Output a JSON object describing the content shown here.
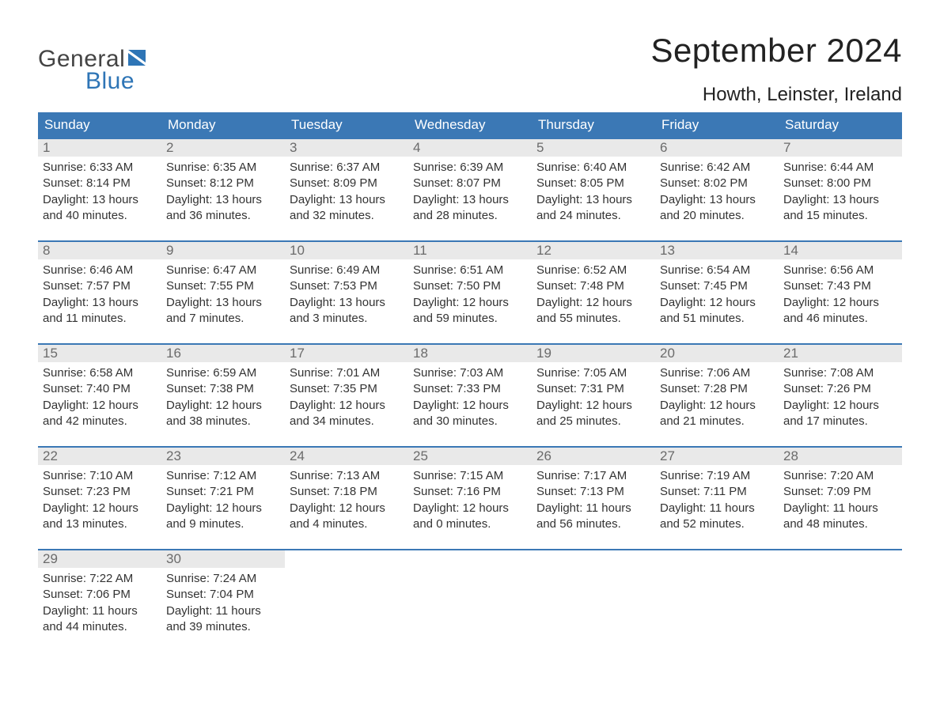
{
  "brand": {
    "text_general": "General",
    "text_blue": "Blue",
    "flag_color": "#2e75b6",
    "text_color_general": "#444444",
    "text_color_blue": "#2e75b6"
  },
  "title": {
    "month": "September 2024",
    "location": "Howth, Leinster, Ireland",
    "month_fontsize": 42,
    "location_fontsize": 24
  },
  "colors": {
    "header_bg": "#3b78b5",
    "header_text": "#ffffff",
    "daynum_bg": "#e9e9e9",
    "daynum_text": "#6b6b6b",
    "body_text": "#333333",
    "week_border": "#3b78b5",
    "page_bg": "#ffffff"
  },
  "day_headers": [
    "Sunday",
    "Monday",
    "Tuesday",
    "Wednesday",
    "Thursday",
    "Friday",
    "Saturday"
  ],
  "weeks": [
    [
      {
        "num": "1",
        "sunrise": "Sunrise: 6:33 AM",
        "sunset": "Sunset: 8:14 PM",
        "day1": "Daylight: 13 hours",
        "day2": "and 40 minutes."
      },
      {
        "num": "2",
        "sunrise": "Sunrise: 6:35 AM",
        "sunset": "Sunset: 8:12 PM",
        "day1": "Daylight: 13 hours",
        "day2": "and 36 minutes."
      },
      {
        "num": "3",
        "sunrise": "Sunrise: 6:37 AM",
        "sunset": "Sunset: 8:09 PM",
        "day1": "Daylight: 13 hours",
        "day2": "and 32 minutes."
      },
      {
        "num": "4",
        "sunrise": "Sunrise: 6:39 AM",
        "sunset": "Sunset: 8:07 PM",
        "day1": "Daylight: 13 hours",
        "day2": "and 28 minutes."
      },
      {
        "num": "5",
        "sunrise": "Sunrise: 6:40 AM",
        "sunset": "Sunset: 8:05 PM",
        "day1": "Daylight: 13 hours",
        "day2": "and 24 minutes."
      },
      {
        "num": "6",
        "sunrise": "Sunrise: 6:42 AM",
        "sunset": "Sunset: 8:02 PM",
        "day1": "Daylight: 13 hours",
        "day2": "and 20 minutes."
      },
      {
        "num": "7",
        "sunrise": "Sunrise: 6:44 AM",
        "sunset": "Sunset: 8:00 PM",
        "day1": "Daylight: 13 hours",
        "day2": "and 15 minutes."
      }
    ],
    [
      {
        "num": "8",
        "sunrise": "Sunrise: 6:46 AM",
        "sunset": "Sunset: 7:57 PM",
        "day1": "Daylight: 13 hours",
        "day2": "and 11 minutes."
      },
      {
        "num": "9",
        "sunrise": "Sunrise: 6:47 AM",
        "sunset": "Sunset: 7:55 PM",
        "day1": "Daylight: 13 hours",
        "day2": "and 7 minutes."
      },
      {
        "num": "10",
        "sunrise": "Sunrise: 6:49 AM",
        "sunset": "Sunset: 7:53 PM",
        "day1": "Daylight: 13 hours",
        "day2": "and 3 minutes."
      },
      {
        "num": "11",
        "sunrise": "Sunrise: 6:51 AM",
        "sunset": "Sunset: 7:50 PM",
        "day1": "Daylight: 12 hours",
        "day2": "and 59 minutes."
      },
      {
        "num": "12",
        "sunrise": "Sunrise: 6:52 AM",
        "sunset": "Sunset: 7:48 PM",
        "day1": "Daylight: 12 hours",
        "day2": "and 55 minutes."
      },
      {
        "num": "13",
        "sunrise": "Sunrise: 6:54 AM",
        "sunset": "Sunset: 7:45 PM",
        "day1": "Daylight: 12 hours",
        "day2": "and 51 minutes."
      },
      {
        "num": "14",
        "sunrise": "Sunrise: 6:56 AM",
        "sunset": "Sunset: 7:43 PM",
        "day1": "Daylight: 12 hours",
        "day2": "and 46 minutes."
      }
    ],
    [
      {
        "num": "15",
        "sunrise": "Sunrise: 6:58 AM",
        "sunset": "Sunset: 7:40 PM",
        "day1": "Daylight: 12 hours",
        "day2": "and 42 minutes."
      },
      {
        "num": "16",
        "sunrise": "Sunrise: 6:59 AM",
        "sunset": "Sunset: 7:38 PM",
        "day1": "Daylight: 12 hours",
        "day2": "and 38 minutes."
      },
      {
        "num": "17",
        "sunrise": "Sunrise: 7:01 AM",
        "sunset": "Sunset: 7:35 PM",
        "day1": "Daylight: 12 hours",
        "day2": "and 34 minutes."
      },
      {
        "num": "18",
        "sunrise": "Sunrise: 7:03 AM",
        "sunset": "Sunset: 7:33 PM",
        "day1": "Daylight: 12 hours",
        "day2": "and 30 minutes."
      },
      {
        "num": "19",
        "sunrise": "Sunrise: 7:05 AM",
        "sunset": "Sunset: 7:31 PM",
        "day1": "Daylight: 12 hours",
        "day2": "and 25 minutes."
      },
      {
        "num": "20",
        "sunrise": "Sunrise: 7:06 AM",
        "sunset": "Sunset: 7:28 PM",
        "day1": "Daylight: 12 hours",
        "day2": "and 21 minutes."
      },
      {
        "num": "21",
        "sunrise": "Sunrise: 7:08 AM",
        "sunset": "Sunset: 7:26 PM",
        "day1": "Daylight: 12 hours",
        "day2": "and 17 minutes."
      }
    ],
    [
      {
        "num": "22",
        "sunrise": "Sunrise: 7:10 AM",
        "sunset": "Sunset: 7:23 PM",
        "day1": "Daylight: 12 hours",
        "day2": "and 13 minutes."
      },
      {
        "num": "23",
        "sunrise": "Sunrise: 7:12 AM",
        "sunset": "Sunset: 7:21 PM",
        "day1": "Daylight: 12 hours",
        "day2": "and 9 minutes."
      },
      {
        "num": "24",
        "sunrise": "Sunrise: 7:13 AM",
        "sunset": "Sunset: 7:18 PM",
        "day1": "Daylight: 12 hours",
        "day2": "and 4 minutes."
      },
      {
        "num": "25",
        "sunrise": "Sunrise: 7:15 AM",
        "sunset": "Sunset: 7:16 PM",
        "day1": "Daylight: 12 hours",
        "day2": "and 0 minutes."
      },
      {
        "num": "26",
        "sunrise": "Sunrise: 7:17 AM",
        "sunset": "Sunset: 7:13 PM",
        "day1": "Daylight: 11 hours",
        "day2": "and 56 minutes."
      },
      {
        "num": "27",
        "sunrise": "Sunrise: 7:19 AM",
        "sunset": "Sunset: 7:11 PM",
        "day1": "Daylight: 11 hours",
        "day2": "and 52 minutes."
      },
      {
        "num": "28",
        "sunrise": "Sunrise: 7:20 AM",
        "sunset": "Sunset: 7:09 PM",
        "day1": "Daylight: 11 hours",
        "day2": "and 48 minutes."
      }
    ],
    [
      {
        "num": "29",
        "sunrise": "Sunrise: 7:22 AM",
        "sunset": "Sunset: 7:06 PM",
        "day1": "Daylight: 11 hours",
        "day2": "and 44 minutes."
      },
      {
        "num": "30",
        "sunrise": "Sunrise: 7:24 AM",
        "sunset": "Sunset: 7:04 PM",
        "day1": "Daylight: 11 hours",
        "day2": "and 39 minutes."
      },
      {
        "empty": true
      },
      {
        "empty": true
      },
      {
        "empty": true
      },
      {
        "empty": true
      },
      {
        "empty": true
      }
    ]
  ]
}
